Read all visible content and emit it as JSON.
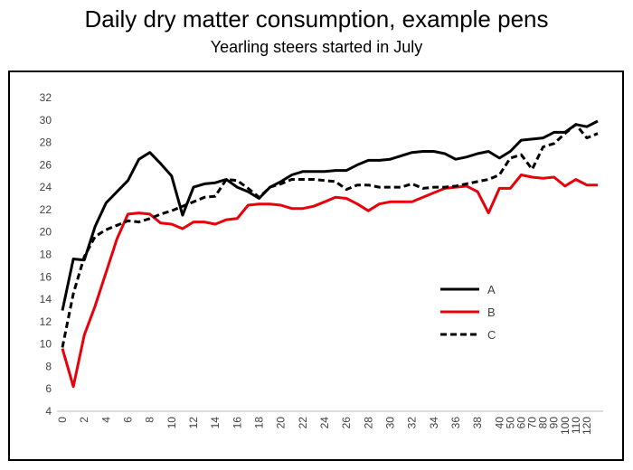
{
  "chart_data": {
    "type": "line",
    "title": "Daily dry matter consumption, example pens",
    "subtitle": "Yearling steers started in July",
    "xlabel": "",
    "ylabel": "",
    "ylim": [
      4,
      32
    ],
    "yticks": [
      4,
      6,
      8,
      10,
      12,
      14,
      16,
      18,
      20,
      22,
      24,
      26,
      28,
      30,
      32
    ],
    "categories": [
      "0",
      "1",
      "2",
      "3",
      "4",
      "5",
      "6",
      "7",
      "8",
      "9",
      "10",
      "11",
      "12",
      "13",
      "14",
      "15",
      "16",
      "17",
      "18",
      "19",
      "20",
      "21",
      "22",
      "23",
      "24",
      "25",
      "26",
      "27",
      "28",
      "29",
      "30",
      "31",
      "32",
      "33",
      "34",
      "35",
      "36",
      "37",
      "38",
      "39",
      "40",
      "50",
      "60",
      "70",
      "80",
      "90",
      "100",
      "110",
      "120",
      "130"
    ],
    "xtick_labels": [
      "0",
      "2",
      "4",
      "6",
      "8",
      "10",
      "12",
      "14",
      "16",
      "18",
      "20",
      "22",
      "24",
      "26",
      "28",
      "30",
      "32",
      "34",
      "36",
      "38",
      "40",
      "50",
      "60",
      "70",
      "80",
      "90",
      "100",
      "110",
      "120"
    ],
    "grid": false,
    "legend_position": "right",
    "series": [
      {
        "name": "A",
        "color": "#000000",
        "style": "solid",
        "values": [
          13.0,
          17.6,
          17.5,
          20.5,
          22.6,
          23.6,
          24.6,
          26.5,
          27.1,
          26.1,
          25.0,
          21.5,
          24.0,
          24.3,
          24.4,
          24.7,
          24.0,
          23.6,
          23.0,
          24.0,
          24.5,
          25.1,
          25.4,
          25.4,
          25.4,
          25.5,
          25.5,
          26.0,
          26.4,
          26.4,
          26.5,
          26.8,
          27.1,
          27.2,
          27.2,
          27.0,
          26.5,
          26.7,
          27.0,
          27.2,
          26.6,
          27.2,
          28.2,
          28.3,
          28.4,
          28.9,
          28.9,
          29.6,
          29.4,
          29.9
        ]
      },
      {
        "name": "B",
        "color": "#e8000b",
        "style": "solid",
        "values": [
          9.6,
          6.2,
          10.8,
          13.4,
          16.4,
          19.4,
          21.6,
          21.7,
          21.6,
          20.8,
          20.7,
          20.3,
          20.9,
          20.9,
          20.7,
          21.1,
          21.2,
          22.4,
          22.5,
          22.5,
          22.4,
          22.1,
          22.1,
          22.3,
          22.7,
          23.1,
          23.0,
          22.5,
          21.9,
          22.5,
          22.7,
          22.7,
          22.7,
          23.1,
          23.5,
          23.9,
          24.0,
          24.1,
          23.6,
          21.7,
          23.9,
          23.9,
          25.1,
          24.9,
          24.8,
          24.9,
          24.1,
          24.7,
          24.2,
          24.2
        ]
      },
      {
        "name": "C",
        "color": "#000000",
        "style": "dashed",
        "values": [
          9.7,
          14.5,
          17.8,
          19.6,
          20.2,
          20.6,
          21.0,
          20.9,
          21.2,
          21.6,
          21.9,
          22.3,
          22.7,
          23.1,
          23.2,
          24.7,
          24.6,
          23.9,
          23.1,
          24.0,
          24.3,
          24.7,
          24.7,
          24.7,
          24.6,
          24.5,
          23.8,
          24.2,
          24.2,
          24.0,
          24.0,
          24.0,
          24.3,
          23.9,
          24.0,
          24.0,
          24.1,
          24.3,
          24.5,
          24.7,
          25.1,
          26.6,
          26.9,
          25.6,
          27.6,
          27.9,
          28.8,
          29.6,
          28.4,
          28.8
        ]
      }
    ]
  }
}
